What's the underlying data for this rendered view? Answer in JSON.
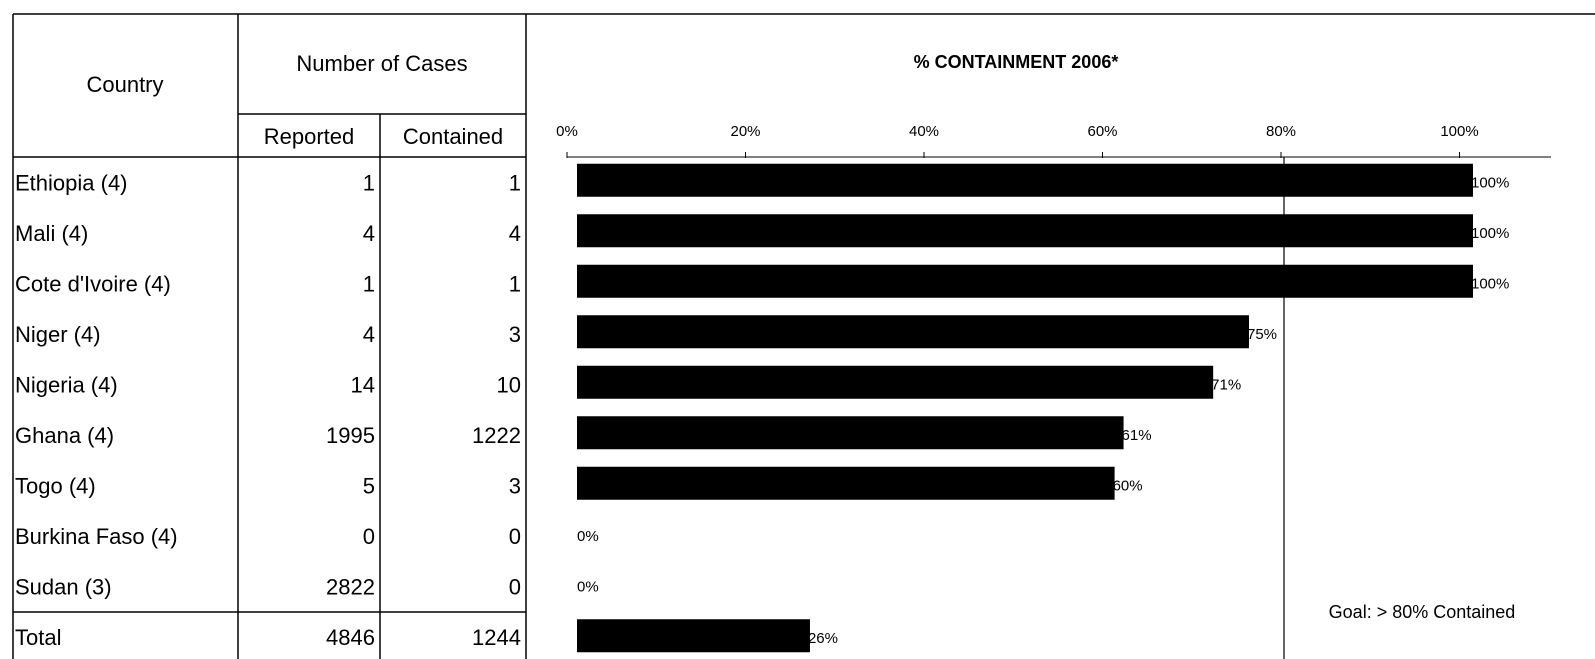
{
  "table": {
    "headers": {
      "country": "Country",
      "number_of_cases": "Number of Cases",
      "reported": "Reported",
      "contained": "Contained"
    },
    "rows": [
      {
        "country": "Ethiopia (4)",
        "reported": "1",
        "contained": "1"
      },
      {
        "country": "Mali (4)",
        "reported": "4",
        "contained": "4"
      },
      {
        "country": "Cote d'Ivoire (4)",
        "reported": "1",
        "contained": "1"
      },
      {
        "country": "Niger (4)",
        "reported": "4",
        "contained": "3"
      },
      {
        "country": "Nigeria (4)",
        "reported": "14",
        "contained": "10"
      },
      {
        "country": "Ghana (4)",
        "reported": "1995",
        "contained": "1222"
      },
      {
        "country": "Togo (4)",
        "reported": "5",
        "contained": "3"
      },
      {
        "country": "Burkina Faso (4)",
        "reported": "0",
        "contained": "0"
      },
      {
        "country": "Sudan (3)",
        "reported": "2822",
        "contained": "0"
      }
    ],
    "total": {
      "country": "Total",
      "reported": "4846",
      "contained": "1244"
    }
  },
  "chart_data": {
    "type": "bar",
    "orientation": "horizontal",
    "title": "% CONTAINMENT 2006*",
    "xlim": [
      0,
      110
    ],
    "ticks": [
      "0%",
      "20%",
      "40%",
      "60%",
      "80%",
      "100%"
    ],
    "categories": [
      "Ethiopia (4)",
      "Mali (4)",
      "Cote d'Ivoire (4)",
      "Niger (4)",
      "Nigeria (4)",
      "Ghana (4)",
      "Togo (4)",
      "Burkina Faso (4)",
      "Sudan (3)",
      "Total"
    ],
    "values": [
      100,
      100,
      100,
      75,
      71,
      61,
      60,
      0,
      0,
      26
    ],
    "data_labels": [
      "100%",
      "100%",
      "100%",
      "75%",
      "71%",
      "61%",
      "60%",
      "0%",
      "0%",
      "26%"
    ],
    "bar_color": "#000000",
    "goal": {
      "value": 80,
      "label": "Goal: > 80% Contained"
    },
    "grid": false
  }
}
